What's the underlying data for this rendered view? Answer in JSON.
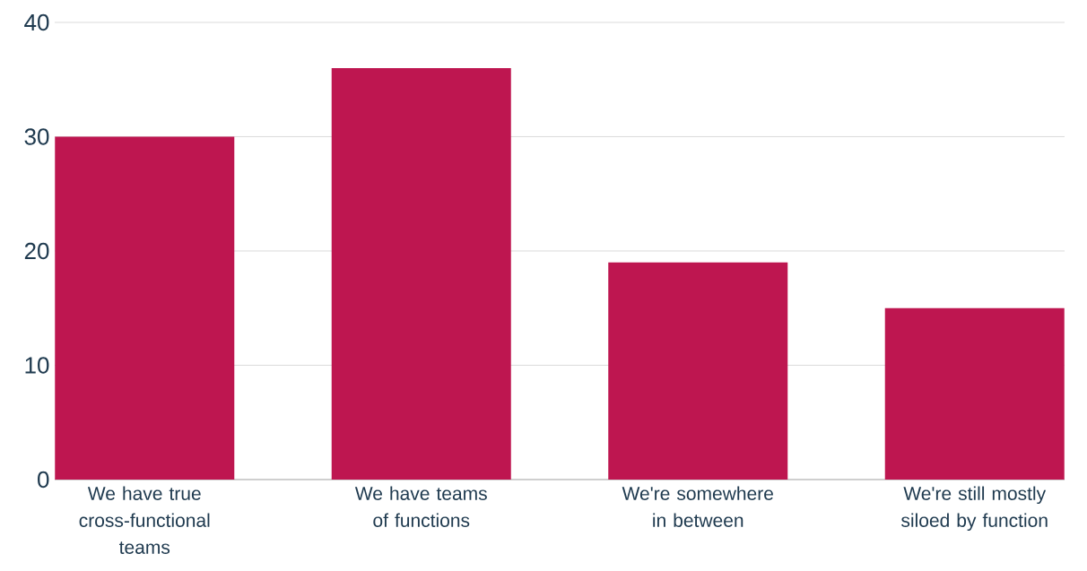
{
  "chart_data": {
    "type": "bar",
    "categories": [
      "We have true cross-functional teams",
      "We have teams of functions",
      "We're somewhere in between",
      "We're still mostly siloed by function"
    ],
    "values": [
      30,
      36,
      19,
      15
    ],
    "color": "#be1650",
    "ylim": [
      0,
      40
    ],
    "yticks": [
      0,
      10,
      20,
      30,
      40
    ],
    "grid": "y"
  }
}
